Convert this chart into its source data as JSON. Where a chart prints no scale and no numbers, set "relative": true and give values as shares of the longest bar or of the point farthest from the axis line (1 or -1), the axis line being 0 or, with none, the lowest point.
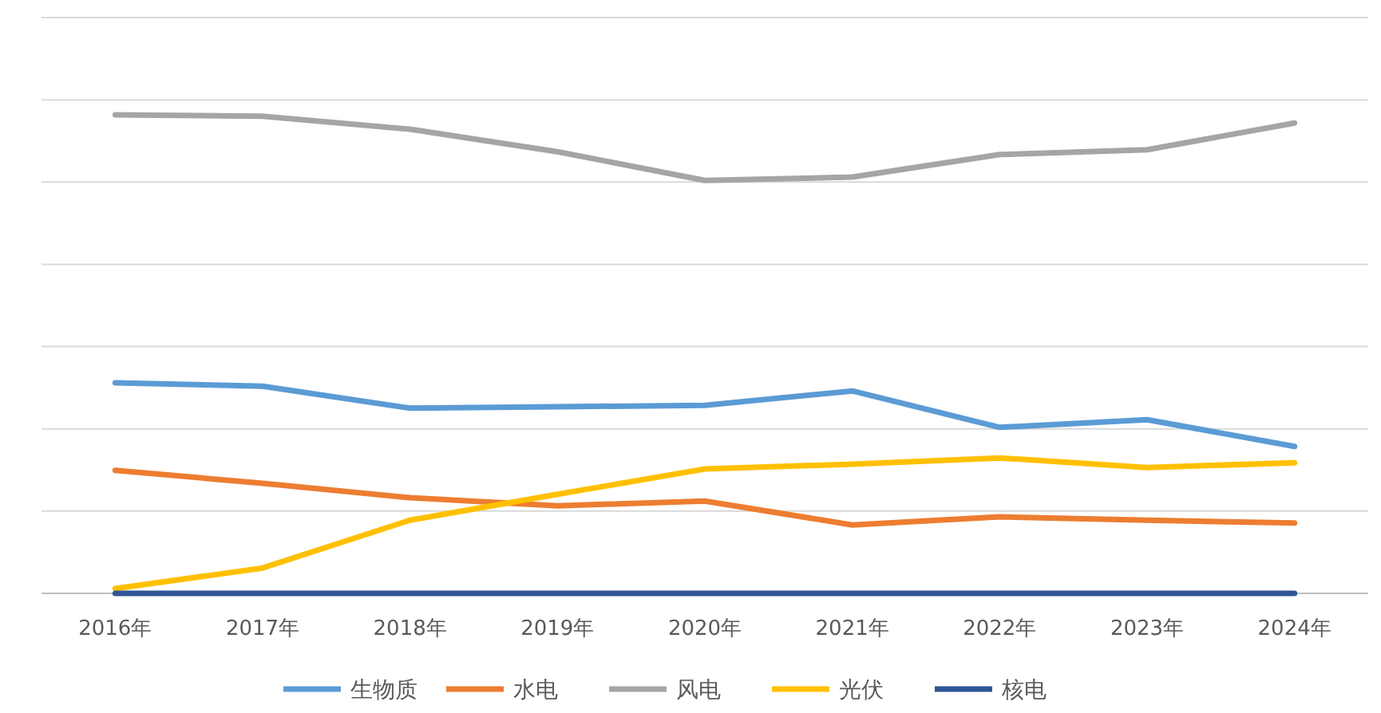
{
  "chart_data": {
    "type": "line",
    "relative": true,
    "grid": "y",
    "legend": "bottom",
    "marker": "none",
    "line_style": "solid",
    "categories": [
      "2016年",
      "2017年",
      "2018年",
      "2019年",
      "2020年",
      "2021年",
      "2022年",
      "2023年",
      "2024年"
    ],
    "series": [
      {
        "name": "生物质",
        "color": "#5b9bd5",
        "values": [
          0.44,
          0.433,
          0.387,
          0.39,
          0.393,
          0.423,
          0.347,
          0.363,
          0.307
        ]
      },
      {
        "name": "水电",
        "color": "#ed7d31",
        "values": [
          0.257,
          0.23,
          0.2,
          0.183,
          0.193,
          0.143,
          0.16,
          0.153,
          0.147
        ]
      },
      {
        "name": "风电",
        "color": "#a5a5a5",
        "values": [
          1,
          0.997,
          0.97,
          0.923,
          0.863,
          0.87,
          0.917,
          0.927,
          0.983
        ]
      },
      {
        "name": "光伏",
        "color": "#ffc000",
        "values": [
          0.01,
          0.053,
          0.153,
          0.207,
          0.26,
          0.27,
          0.283,
          0.263,
          0.273
        ]
      },
      {
        "name": "核电",
        "color": "#2f5597",
        "values": [
          0,
          0,
          0,
          0,
          0,
          0,
          0,
          0,
          0
        ]
      }
    ]
  }
}
